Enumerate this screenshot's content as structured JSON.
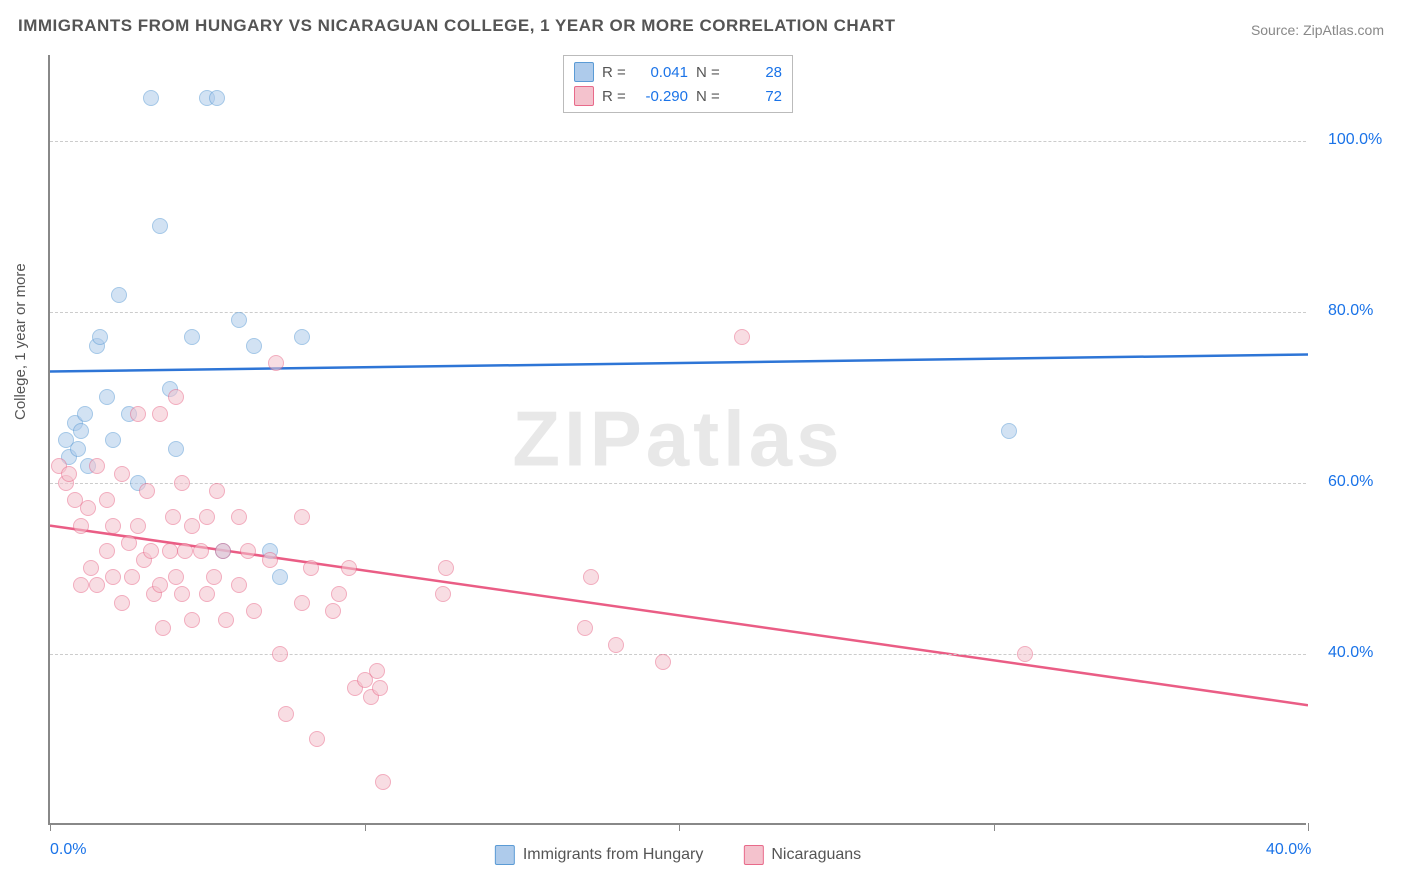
{
  "title": "IMMIGRANTS FROM HUNGARY VS NICARAGUAN COLLEGE, 1 YEAR OR MORE CORRELATION CHART",
  "source": "Source: ZipAtlas.com",
  "watermark": "ZIPatlas",
  "ylabel": "College, 1 year or more",
  "chart": {
    "type": "scatter",
    "xlim": [
      0,
      40
    ],
    "ylim": [
      20,
      110
    ],
    "yticks": [
      40,
      60,
      80,
      100
    ],
    "ytick_labels": [
      "40.0%",
      "60.0%",
      "80.0%",
      "100.0%"
    ],
    "xticks": [
      0,
      10,
      20,
      30,
      40
    ],
    "xtick_labels": [
      "0.0%",
      "",
      "",
      "",
      "40.0%"
    ],
    "grid_color": "#cccccc",
    "axis_color": "#888888",
    "background": "#ffffff",
    "dot_radius": 8,
    "dot_opacity": 0.55,
    "series": [
      {
        "name": "Immigrants from Hungary",
        "fill": "#aecbeb",
        "stroke": "#5b9bd5",
        "line_color": "#2e75d6",
        "R": "0.041",
        "N": "28",
        "trend": {
          "y_at_x0": 73,
          "y_at_x40": 75
        },
        "points": [
          [
            0.5,
            65
          ],
          [
            0.6,
            63
          ],
          [
            0.8,
            67
          ],
          [
            0.9,
            64
          ],
          [
            1.0,
            66
          ],
          [
            1.1,
            68
          ],
          [
            1.2,
            62
          ],
          [
            1.5,
            76
          ],
          [
            1.6,
            77
          ],
          [
            1.8,
            70
          ],
          [
            2.0,
            65
          ],
          [
            2.2,
            82
          ],
          [
            2.5,
            68
          ],
          [
            2.8,
            60
          ],
          [
            3.2,
            105
          ],
          [
            3.5,
            90
          ],
          [
            3.8,
            71
          ],
          [
            4.0,
            64
          ],
          [
            4.5,
            77
          ],
          [
            5.0,
            105
          ],
          [
            5.3,
            105
          ],
          [
            5.5,
            52
          ],
          [
            6.0,
            79
          ],
          [
            6.5,
            76
          ],
          [
            7.0,
            52
          ],
          [
            7.3,
            49
          ],
          [
            8.0,
            77
          ],
          [
            30.5,
            66
          ]
        ]
      },
      {
        "name": "Nicaraguans",
        "fill": "#f4c2cd",
        "stroke": "#e86a8a",
        "line_color": "#ea5d85",
        "R": "-0.290",
        "N": "72",
        "trend": {
          "y_at_x0": 55,
          "y_at_x40": 34
        },
        "points": [
          [
            0.3,
            62
          ],
          [
            0.5,
            60
          ],
          [
            0.6,
            61
          ],
          [
            0.8,
            58
          ],
          [
            1.0,
            55
          ],
          [
            1.0,
            48
          ],
          [
            1.2,
            57
          ],
          [
            1.3,
            50
          ],
          [
            1.5,
            62
          ],
          [
            1.5,
            48
          ],
          [
            1.8,
            58
          ],
          [
            1.8,
            52
          ],
          [
            2.0,
            49
          ],
          [
            2.0,
            55
          ],
          [
            2.3,
            61
          ],
          [
            2.3,
            46
          ],
          [
            2.5,
            53
          ],
          [
            2.6,
            49
          ],
          [
            2.8,
            68
          ],
          [
            2.8,
            55
          ],
          [
            3.0,
            51
          ],
          [
            3.1,
            59
          ],
          [
            3.2,
            52
          ],
          [
            3.3,
            47
          ],
          [
            3.5,
            68
          ],
          [
            3.5,
            48
          ],
          [
            3.6,
            43
          ],
          [
            3.8,
            52
          ],
          [
            3.9,
            56
          ],
          [
            4.0,
            70
          ],
          [
            4.0,
            49
          ],
          [
            4.2,
            60
          ],
          [
            4.2,
            47
          ],
          [
            4.3,
            52
          ],
          [
            4.5,
            55
          ],
          [
            4.5,
            44
          ],
          [
            4.8,
            52
          ],
          [
            5.0,
            47
          ],
          [
            5.0,
            56
          ],
          [
            5.2,
            49
          ],
          [
            5.3,
            59
          ],
          [
            5.5,
            52
          ],
          [
            5.6,
            44
          ],
          [
            6.0,
            56
          ],
          [
            6.0,
            48
          ],
          [
            6.3,
            52
          ],
          [
            6.5,
            45
          ],
          [
            7.0,
            51
          ],
          [
            7.2,
            74
          ],
          [
            7.3,
            40
          ],
          [
            7.5,
            33
          ],
          [
            8.0,
            56
          ],
          [
            8.0,
            46
          ],
          [
            8.3,
            50
          ],
          [
            8.5,
            30
          ],
          [
            9.0,
            45
          ],
          [
            9.2,
            47
          ],
          [
            9.5,
            50
          ],
          [
            9.7,
            36
          ],
          [
            10.0,
            37
          ],
          [
            10.2,
            35
          ],
          [
            10.4,
            38
          ],
          [
            10.5,
            36
          ],
          [
            10.6,
            25
          ],
          [
            12.5,
            47
          ],
          [
            12.6,
            50
          ],
          [
            17.0,
            43
          ],
          [
            17.2,
            49
          ],
          [
            18.0,
            41
          ],
          [
            19.5,
            39
          ],
          [
            22.0,
            77
          ],
          [
            31.0,
            40
          ]
        ]
      }
    ]
  },
  "legend_bottom": [
    "Immigrants from Hungary",
    "Nicaraguans"
  ]
}
